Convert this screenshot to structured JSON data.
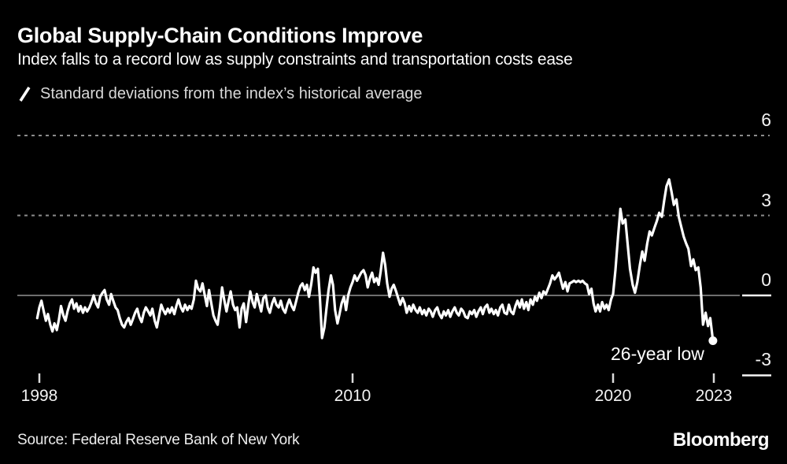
{
  "header": {
    "title": "Global Supply-Chain Conditions Improve",
    "subtitle": "Index falls to a record low as supply constraints and transportation costs ease"
  },
  "legend": {
    "label": "Standard deviations from the index’s historical average"
  },
  "annotation": {
    "label": "26-year low"
  },
  "footer": {
    "source": "Source: Federal Reserve Bank of New York",
    "brand": "Bloomberg"
  },
  "colors": {
    "background": "#000000",
    "line": "#ffffff",
    "grid_dotted": "#8c8c8c",
    "zero_line": "#6e6e6e",
    "axis_segment": "#f5f5f5",
    "tick": "#dcdcdc",
    "axis_text": "#f2f2f2"
  },
  "chart_data": {
    "type": "line",
    "title": "Global Supply-Chain Conditions Improve",
    "series_label": "Standard deviations from the index’s historical average",
    "ylabel": "Standard deviations from the index’s historical average",
    "ylim": [
      -3,
      6
    ],
    "grid": "dotted horizontal at 3 and 6, solid at 0",
    "legend_position": "top-left",
    "y_ticks": [
      {
        "label": "6",
        "value": 6,
        "style": "dotted"
      },
      {
        "label": "3",
        "value": 3,
        "style": "dotted"
      },
      {
        "label": "0",
        "value": 0,
        "style": "zero"
      },
      {
        "label": "-3",
        "value": -3,
        "style": "edge"
      }
    ],
    "x_ticks": [
      {
        "label": "1998",
        "year": 1998
      },
      {
        "label": "2010",
        "year": 2010
      },
      {
        "label": "2020",
        "year": 2020
      },
      {
        "label": "2023",
        "year": 2023.45
      }
    ],
    "x_anchors": [
      [
        1998,
        50
      ],
      [
        2010,
        448
      ],
      [
        2020,
        779
      ],
      [
        2023.45,
        907
      ]
    ],
    "end_marker": {
      "year": 2023.42,
      "value": -1.7,
      "label": "26-year low"
    },
    "points": [
      [
        1997.92,
        -0.85
      ],
      [
        1998.0,
        -0.45
      ],
      [
        1998.08,
        -0.2
      ],
      [
        1998.17,
        -0.6
      ],
      [
        1998.25,
        -0.95
      ],
      [
        1998.33,
        -0.7
      ],
      [
        1998.42,
        -1.1
      ],
      [
        1998.5,
        -1.35
      ],
      [
        1998.58,
        -1.05
      ],
      [
        1998.67,
        -1.3
      ],
      [
        1998.75,
        -0.9
      ],
      [
        1998.83,
        -0.4
      ],
      [
        1998.92,
        -0.75
      ],
      [
        1999.0,
        -0.95
      ],
      [
        1999.08,
        -0.6
      ],
      [
        1999.17,
        -0.3
      ],
      [
        1999.25,
        -0.15
      ],
      [
        1999.33,
        -0.5
      ],
      [
        1999.42,
        -0.3
      ],
      [
        1999.5,
        -0.6
      ],
      [
        1999.58,
        -0.4
      ],
      [
        1999.67,
        -0.65
      ],
      [
        1999.75,
        -0.45
      ],
      [
        1999.83,
        -0.6
      ],
      [
        1999.92,
        -0.45
      ],
      [
        2000.0,
        -0.25
      ],
      [
        2000.08,
        0.0
      ],
      [
        2000.17,
        -0.3
      ],
      [
        2000.25,
        -0.45
      ],
      [
        2000.33,
        -0.05
      ],
      [
        2000.42,
        0.1
      ],
      [
        2000.5,
        0.2
      ],
      [
        2000.58,
        -0.15
      ],
      [
        2000.67,
        -0.35
      ],
      [
        2000.75,
        0.05
      ],
      [
        2000.83,
        -0.2
      ],
      [
        2000.92,
        -0.45
      ],
      [
        2001.0,
        -0.55
      ],
      [
        2001.08,
        -0.85
      ],
      [
        2001.17,
        -1.1
      ],
      [
        2001.25,
        -1.2
      ],
      [
        2001.33,
        -1.0
      ],
      [
        2001.42,
        -0.85
      ],
      [
        2001.5,
        -1.1
      ],
      [
        2001.58,
        -0.9
      ],
      [
        2001.67,
        -0.65
      ],
      [
        2001.75,
        -0.5
      ],
      [
        2001.83,
        -0.8
      ],
      [
        2001.92,
        -1.0
      ],
      [
        2002.0,
        -0.65
      ],
      [
        2002.08,
        -0.45
      ],
      [
        2002.17,
        -0.6
      ],
      [
        2002.25,
        -0.75
      ],
      [
        2002.33,
        -0.5
      ],
      [
        2002.42,
        -0.95
      ],
      [
        2002.5,
        -1.2
      ],
      [
        2002.58,
        -0.8
      ],
      [
        2002.67,
        -0.35
      ],
      [
        2002.75,
        -0.55
      ],
      [
        2002.83,
        -0.7
      ],
      [
        2002.92,
        -0.5
      ],
      [
        2003.0,
        -0.65
      ],
      [
        2003.08,
        -0.45
      ],
      [
        2003.17,
        -0.7
      ],
      [
        2003.25,
        -0.4
      ],
      [
        2003.33,
        -0.15
      ],
      [
        2003.42,
        -0.45
      ],
      [
        2003.5,
        -0.6
      ],
      [
        2003.58,
        -0.35
      ],
      [
        2003.67,
        -0.55
      ],
      [
        2003.75,
        -0.4
      ],
      [
        2003.83,
        -0.5
      ],
      [
        2003.92,
        -0.15
      ],
      [
        2004.0,
        0.55
      ],
      [
        2004.08,
        0.25
      ],
      [
        2004.17,
        0.15
      ],
      [
        2004.25,
        0.45
      ],
      [
        2004.33,
        0.05
      ],
      [
        2004.42,
        -0.4
      ],
      [
        2004.5,
        0.2
      ],
      [
        2004.58,
        -0.25
      ],
      [
        2004.67,
        -0.75
      ],
      [
        2004.75,
        -0.95
      ],
      [
        2004.83,
        -1.1
      ],
      [
        2004.92,
        -0.45
      ],
      [
        2005.0,
        0.3
      ],
      [
        2005.08,
        -0.15
      ],
      [
        2005.17,
        -0.6
      ],
      [
        2005.25,
        -0.2
      ],
      [
        2005.33,
        0.15
      ],
      [
        2005.42,
        -0.35
      ],
      [
        2005.5,
        -0.55
      ],
      [
        2005.58,
        -0.45
      ],
      [
        2005.67,
        -1.2
      ],
      [
        2005.75,
        -0.5
      ],
      [
        2005.83,
        -0.3
      ],
      [
        2005.92,
        -1.0
      ],
      [
        2006.0,
        -0.4
      ],
      [
        2006.08,
        0.15
      ],
      [
        2006.17,
        -0.25
      ],
      [
        2006.25,
        -0.45
      ],
      [
        2006.33,
        0.05
      ],
      [
        2006.42,
        -0.3
      ],
      [
        2006.5,
        -0.6
      ],
      [
        2006.58,
        -0.1
      ],
      [
        2006.67,
        0.0
      ],
      [
        2006.75,
        -0.45
      ],
      [
        2006.83,
        -0.65
      ],
      [
        2006.92,
        -0.3
      ],
      [
        2007.0,
        -0.1
      ],
      [
        2007.08,
        -0.35
      ],
      [
        2007.17,
        -0.45
      ],
      [
        2007.25,
        -0.2
      ],
      [
        2007.33,
        -0.5
      ],
      [
        2007.42,
        -0.65
      ],
      [
        2007.5,
        -0.35
      ],
      [
        2007.58,
        -0.15
      ],
      [
        2007.67,
        -0.4
      ],
      [
        2007.75,
        -0.55
      ],
      [
        2007.83,
        -0.25
      ],
      [
        2007.92,
        0.1
      ],
      [
        2008.0,
        0.35
      ],
      [
        2008.08,
        0.45
      ],
      [
        2008.17,
        0.2
      ],
      [
        2008.25,
        0.4
      ],
      [
        2008.33,
        -0.05
      ],
      [
        2008.42,
        0.45
      ],
      [
        2008.5,
        1.05
      ],
      [
        2008.58,
        0.85
      ],
      [
        2008.67,
        1.0
      ],
      [
        2008.75,
        -0.1
      ],
      [
        2008.83,
        -1.6
      ],
      [
        2008.92,
        -1.2
      ],
      [
        2009.0,
        -0.5
      ],
      [
        2009.08,
        0.2
      ],
      [
        2009.17,
        0.75
      ],
      [
        2009.25,
        0.4
      ],
      [
        2009.33,
        -0.55
      ],
      [
        2009.42,
        -1.05
      ],
      [
        2009.5,
        -0.7
      ],
      [
        2009.58,
        -0.3
      ],
      [
        2009.67,
        -0.05
      ],
      [
        2009.75,
        -0.55
      ],
      [
        2009.83,
        0.0
      ],
      [
        2009.92,
        0.3
      ],
      [
        2010.0,
        0.5
      ],
      [
        2010.08,
        0.75
      ],
      [
        2010.17,
        0.55
      ],
      [
        2010.25,
        0.7
      ],
      [
        2010.33,
        0.85
      ],
      [
        2010.42,
        0.95
      ],
      [
        2010.5,
        0.75
      ],
      [
        2010.58,
        0.3
      ],
      [
        2010.67,
        0.65
      ],
      [
        2010.75,
        0.85
      ],
      [
        2010.83,
        0.5
      ],
      [
        2010.92,
        0.65
      ],
      [
        2011.0,
        0.4
      ],
      [
        2011.08,
        0.9
      ],
      [
        2011.17,
        1.6
      ],
      [
        2011.25,
        1.15
      ],
      [
        2011.33,
        0.45
      ],
      [
        2011.42,
        -0.05
      ],
      [
        2011.5,
        0.25
      ],
      [
        2011.58,
        0.4
      ],
      [
        2011.67,
        0.15
      ],
      [
        2011.75,
        -0.1
      ],
      [
        2011.83,
        -0.35
      ],
      [
        2011.92,
        -0.1
      ],
      [
        2012.0,
        -0.3
      ],
      [
        2012.08,
        -0.65
      ],
      [
        2012.17,
        -0.4
      ],
      [
        2012.25,
        -0.6
      ],
      [
        2012.33,
        -0.35
      ],
      [
        2012.42,
        -0.55
      ],
      [
        2012.5,
        -0.65
      ],
      [
        2012.58,
        -0.45
      ],
      [
        2012.67,
        -0.7
      ],
      [
        2012.75,
        -0.55
      ],
      [
        2012.83,
        -0.75
      ],
      [
        2012.92,
        -0.5
      ],
      [
        2013.0,
        -0.6
      ],
      [
        2013.08,
        -0.8
      ],
      [
        2013.17,
        -0.55
      ],
      [
        2013.25,
        -0.45
      ],
      [
        2013.33,
        -0.7
      ],
      [
        2013.42,
        -0.85
      ],
      [
        2013.5,
        -0.6
      ],
      [
        2013.58,
        -0.75
      ],
      [
        2013.67,
        -0.55
      ],
      [
        2013.75,
        -0.8
      ],
      [
        2013.83,
        -0.6
      ],
      [
        2013.92,
        -0.45
      ],
      [
        2014.0,
        -0.65
      ],
      [
        2014.08,
        -0.75
      ],
      [
        2014.17,
        -0.5
      ],
      [
        2014.25,
        -0.6
      ],
      [
        2014.33,
        -0.8
      ],
      [
        2014.42,
        -0.85
      ],
      [
        2014.5,
        -0.6
      ],
      [
        2014.58,
        -0.7
      ],
      [
        2014.67,
        -0.55
      ],
      [
        2014.75,
        -0.8
      ],
      [
        2014.83,
        -0.6
      ],
      [
        2014.92,
        -0.45
      ],
      [
        2015.0,
        -0.7
      ],
      [
        2015.08,
        -0.45
      ],
      [
        2015.17,
        -0.35
      ],
      [
        2015.25,
        -0.65
      ],
      [
        2015.33,
        -0.5
      ],
      [
        2015.42,
        -0.7
      ],
      [
        2015.5,
        -0.55
      ],
      [
        2015.58,
        -0.75
      ],
      [
        2015.67,
        -0.45
      ],
      [
        2015.75,
        -0.35
      ],
      [
        2015.83,
        -0.65
      ],
      [
        2015.92,
        -0.7
      ],
      [
        2016.0,
        -0.35
      ],
      [
        2016.08,
        -0.6
      ],
      [
        2016.17,
        -0.7
      ],
      [
        2016.25,
        -0.4
      ],
      [
        2016.33,
        -0.2
      ],
      [
        2016.42,
        -0.45
      ],
      [
        2016.5,
        -0.15
      ],
      [
        2016.58,
        -0.5
      ],
      [
        2016.67,
        -0.25
      ],
      [
        2016.75,
        -0.55
      ],
      [
        2016.83,
        -0.15
      ],
      [
        2016.92,
        -0.35
      ],
      [
        2017.0,
        -0.05
      ],
      [
        2017.08,
        -0.2
      ],
      [
        2017.17,
        0.1
      ],
      [
        2017.25,
        -0.1
      ],
      [
        2017.33,
        0.15
      ],
      [
        2017.42,
        0.05
      ],
      [
        2017.5,
        0.25
      ],
      [
        2017.58,
        0.45
      ],
      [
        2017.67,
        0.75
      ],
      [
        2017.75,
        0.6
      ],
      [
        2017.83,
        0.7
      ],
      [
        2017.92,
        0.85
      ],
      [
        2018.0,
        0.55
      ],
      [
        2018.08,
        0.25
      ],
      [
        2018.17,
        0.5
      ],
      [
        2018.25,
        0.15
      ],
      [
        2018.33,
        0.45
      ],
      [
        2018.42,
        0.5
      ],
      [
        2018.5,
        0.55
      ],
      [
        2018.58,
        0.5
      ],
      [
        2018.67,
        0.55
      ],
      [
        2018.75,
        0.5
      ],
      [
        2018.83,
        0.55
      ],
      [
        2018.92,
        0.45
      ],
      [
        2019.0,
        0.4
      ],
      [
        2019.08,
        0.05
      ],
      [
        2019.17,
        0.25
      ],
      [
        2019.25,
        -0.3
      ],
      [
        2019.33,
        -0.6
      ],
      [
        2019.42,
        -0.35
      ],
      [
        2019.5,
        -0.6
      ],
      [
        2019.58,
        -0.25
      ],
      [
        2019.67,
        -0.5
      ],
      [
        2019.75,
        -0.35
      ],
      [
        2019.83,
        -0.55
      ],
      [
        2019.92,
        -0.15
      ],
      [
        2020.0,
        0.05
      ],
      [
        2020.08,
        0.95
      ],
      [
        2020.17,
        2.2
      ],
      [
        2020.25,
        3.25
      ],
      [
        2020.33,
        2.7
      ],
      [
        2020.42,
        2.85
      ],
      [
        2020.5,
        1.9
      ],
      [
        2020.58,
        1.0
      ],
      [
        2020.67,
        0.4
      ],
      [
        2020.75,
        0.1
      ],
      [
        2020.83,
        0.5
      ],
      [
        2020.92,
        1.15
      ],
      [
        2021.0,
        1.65
      ],
      [
        2021.08,
        1.3
      ],
      [
        2021.17,
        1.95
      ],
      [
        2021.25,
        2.4
      ],
      [
        2021.33,
        2.25
      ],
      [
        2021.42,
        2.55
      ],
      [
        2021.5,
        2.8
      ],
      [
        2021.58,
        3.1
      ],
      [
        2021.67,
        2.95
      ],
      [
        2021.75,
        3.55
      ],
      [
        2021.83,
        4.1
      ],
      [
        2021.92,
        4.35
      ],
      [
        2022.0,
        3.9
      ],
      [
        2022.08,
        3.4
      ],
      [
        2022.17,
        3.6
      ],
      [
        2022.25,
        2.95
      ],
      [
        2022.33,
        2.6
      ],
      [
        2022.42,
        2.2
      ],
      [
        2022.5,
        1.95
      ],
      [
        2022.58,
        1.75
      ],
      [
        2022.67,
        1.1
      ],
      [
        2022.75,
        1.35
      ],
      [
        2022.83,
        0.95
      ],
      [
        2022.92,
        1.05
      ],
      [
        2023.0,
        0.3
      ],
      [
        2023.08,
        -1.1
      ],
      [
        2023.17,
        -0.65
      ],
      [
        2023.25,
        -1.15
      ],
      [
        2023.33,
        -0.85
      ],
      [
        2023.42,
        -1.7
      ]
    ]
  }
}
